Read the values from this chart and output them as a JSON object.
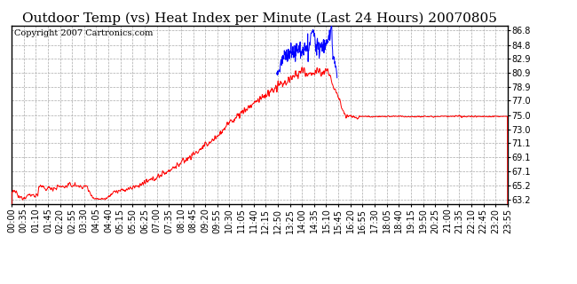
{
  "title": "Outdoor Temp (vs) Heat Index per Minute (Last 24 Hours) 20070805",
  "copyright_text": "Copyright 2007 Cartronics.com",
  "yticks": [
    63.2,
    65.2,
    67.1,
    69.1,
    71.1,
    73.0,
    75.0,
    77.0,
    78.9,
    80.9,
    82.9,
    84.8,
    86.8
  ],
  "ylim": [
    62.5,
    87.5
  ],
  "xtick_labels": [
    "00:00",
    "00:35",
    "01:10",
    "01:45",
    "02:20",
    "02:55",
    "03:30",
    "04:05",
    "04:40",
    "05:15",
    "05:50",
    "06:25",
    "07:00",
    "07:35",
    "08:10",
    "08:45",
    "09:20",
    "09:55",
    "10:30",
    "11:05",
    "11:40",
    "12:15",
    "12:50",
    "13:25",
    "14:00",
    "14:35",
    "15:10",
    "15:45",
    "16:20",
    "16:55",
    "17:30",
    "18:05",
    "18:40",
    "19:15",
    "19:50",
    "20:25",
    "21:00",
    "21:35",
    "22:10",
    "22:45",
    "23:20",
    "23:55"
  ],
  "bg_color": "#ffffff",
  "plot_bg_color": "#ffffff",
  "grid_color": "#aaaaaa",
  "line_color_red": "#ff0000",
  "line_color_blue": "#0000ff",
  "title_fontsize": 11,
  "copyright_fontsize": 7,
  "tick_fontsize": 7,
  "border_color": "#000000"
}
